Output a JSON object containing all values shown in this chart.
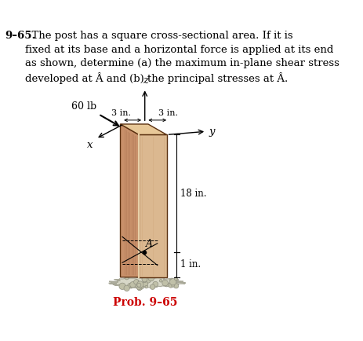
{
  "prob_label": "Prob. 9–65",
  "prob_color": "#cc0000",
  "background": "#ffffff",
  "wood_front_color": "#d4a87a",
  "wood_left_color": "#c09060",
  "wood_top_color": "#e0c090",
  "wood_edge_color": "#5a3010",
  "wood_groove_color": "#c49060",
  "ground_fill": "#d8d8c8",
  "ground_edge": "#a8a898",
  "force_label": "60 lb",
  "z_label": "z",
  "y_label": "y",
  "x_label": "x",
  "dim1_label": "3 in.",
  "dim2_label": "3 in.",
  "dim3_label": "18 in.",
  "dim4_label": "1 in.",
  "point_label": "A",
  "header_bold": "9–65.",
  "header_body": "  The post has a square cross-sectional area. If it is\nfixed at its base and a horizontal force is applied at its end\nas shown, determine (a) the maximum in-plane shear stress\ndeveloped at ",
  "header_A1": "A",
  "header_mid": " and (b) the principal stresses at ",
  "header_A2": "A",
  "header_end": "."
}
